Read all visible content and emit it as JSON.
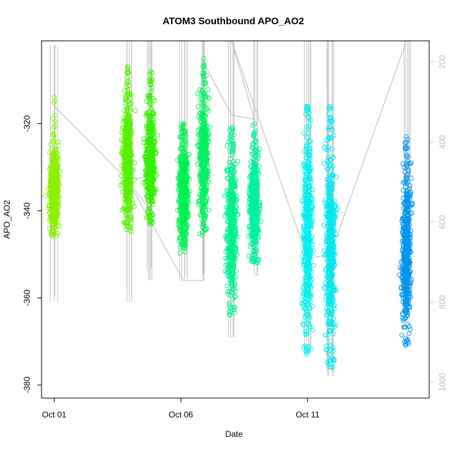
{
  "chart_data": {
    "type": "scatter",
    "title": "ATOM3 Southbound APO_AO2",
    "xlabel": "Date",
    "ylabel": "APO_AO2",
    "x_ticks": [
      "Oct 01",
      "Oct 06",
      "Oct 11"
    ],
    "x_tick_days": [
      1,
      6,
      11
    ],
    "xlim_days": [
      0.5,
      15.8
    ],
    "ylim": [
      -383,
      -301
    ],
    "y_ticks": [
      -320,
      -340,
      -360,
      -380
    ],
    "y2_ticks": [
      200,
      400,
      600,
      800,
      1000
    ],
    "y2lim": [
      1040,
      147
    ],
    "grid": false,
    "legend": "none",
    "series": [
      {
        "day": 1.0,
        "y_min": -346,
        "y_max": -324,
        "y_top_outlier": -314,
        "color": "#8cf000",
        "spike_top": -302,
        "spike_bottom": -361
      },
      {
        "day": 3.9,
        "y_min": -345,
        "y_max": -312,
        "y_top_outlier": -307,
        "color": "#55f000",
        "spike_top": -301,
        "spike_bottom": -361
      },
      {
        "day": 4.8,
        "y_min": -343,
        "y_max": -313,
        "y_top_outlier": -308,
        "color": "#33f000",
        "spike_top": -301,
        "spike_bottom": -356
      },
      {
        "day": 6.1,
        "y_min": -350,
        "y_max": -322,
        "y_top_outlier": -320,
        "color": "#00f050",
        "spike_top": -301,
        "spike_bottom": -356
      },
      {
        "day": 6.9,
        "y_min": -346,
        "y_max": -310,
        "y_top_outlier": -305,
        "color": "#00f060",
        "spike_top": -301,
        "spike_bottom": -356
      },
      {
        "day": 8.0,
        "y_min": -364,
        "y_max": -324,
        "y_top_outlier": -321,
        "color": "#00f090",
        "spike_top": -301,
        "spike_bottom": -369
      },
      {
        "day": 8.9,
        "y_min": -352,
        "y_max": -325,
        "y_top_outlier": -320,
        "color": "#00f0a0",
        "spike_top": -301,
        "spike_bottom": -355
      },
      {
        "day": 11.0,
        "y_min": -373,
        "y_max": -319,
        "y_top_outlier": -316,
        "color": "#00f0f0",
        "spike_top": -301,
        "spike_bottom": -372
      },
      {
        "day": 11.9,
        "y_min": -376,
        "y_max": -320,
        "y_top_outlier": -316,
        "color": "#00e8f0",
        "spike_top": -301,
        "spike_bottom": -378
      },
      {
        "day": 14.9,
        "y_min": -371,
        "y_max": -328,
        "y_top_outlier": -323,
        "color": "#0096f0",
        "spike_top": -301,
        "spike_bottom": -362
      }
    ],
    "track_line": {
      "color": "#bbbbbb",
      "points": [
        [
          1.0,
          -316
        ],
        [
          3.9,
          -333
        ],
        [
          4.8,
          -340
        ],
        [
          4.8,
          -332
        ],
        [
          3.9,
          -333
        ],
        [
          6.1,
          -356
        ],
        [
          6.9,
          -356
        ],
        [
          6.9,
          -306
        ],
        [
          8.0,
          -318
        ],
        [
          8.9,
          -319
        ],
        [
          8.0,
          -301
        ],
        [
          11.0,
          -351
        ],
        [
          11.9,
          -350
        ],
        [
          14.9,
          -301
        ]
      ]
    }
  }
}
